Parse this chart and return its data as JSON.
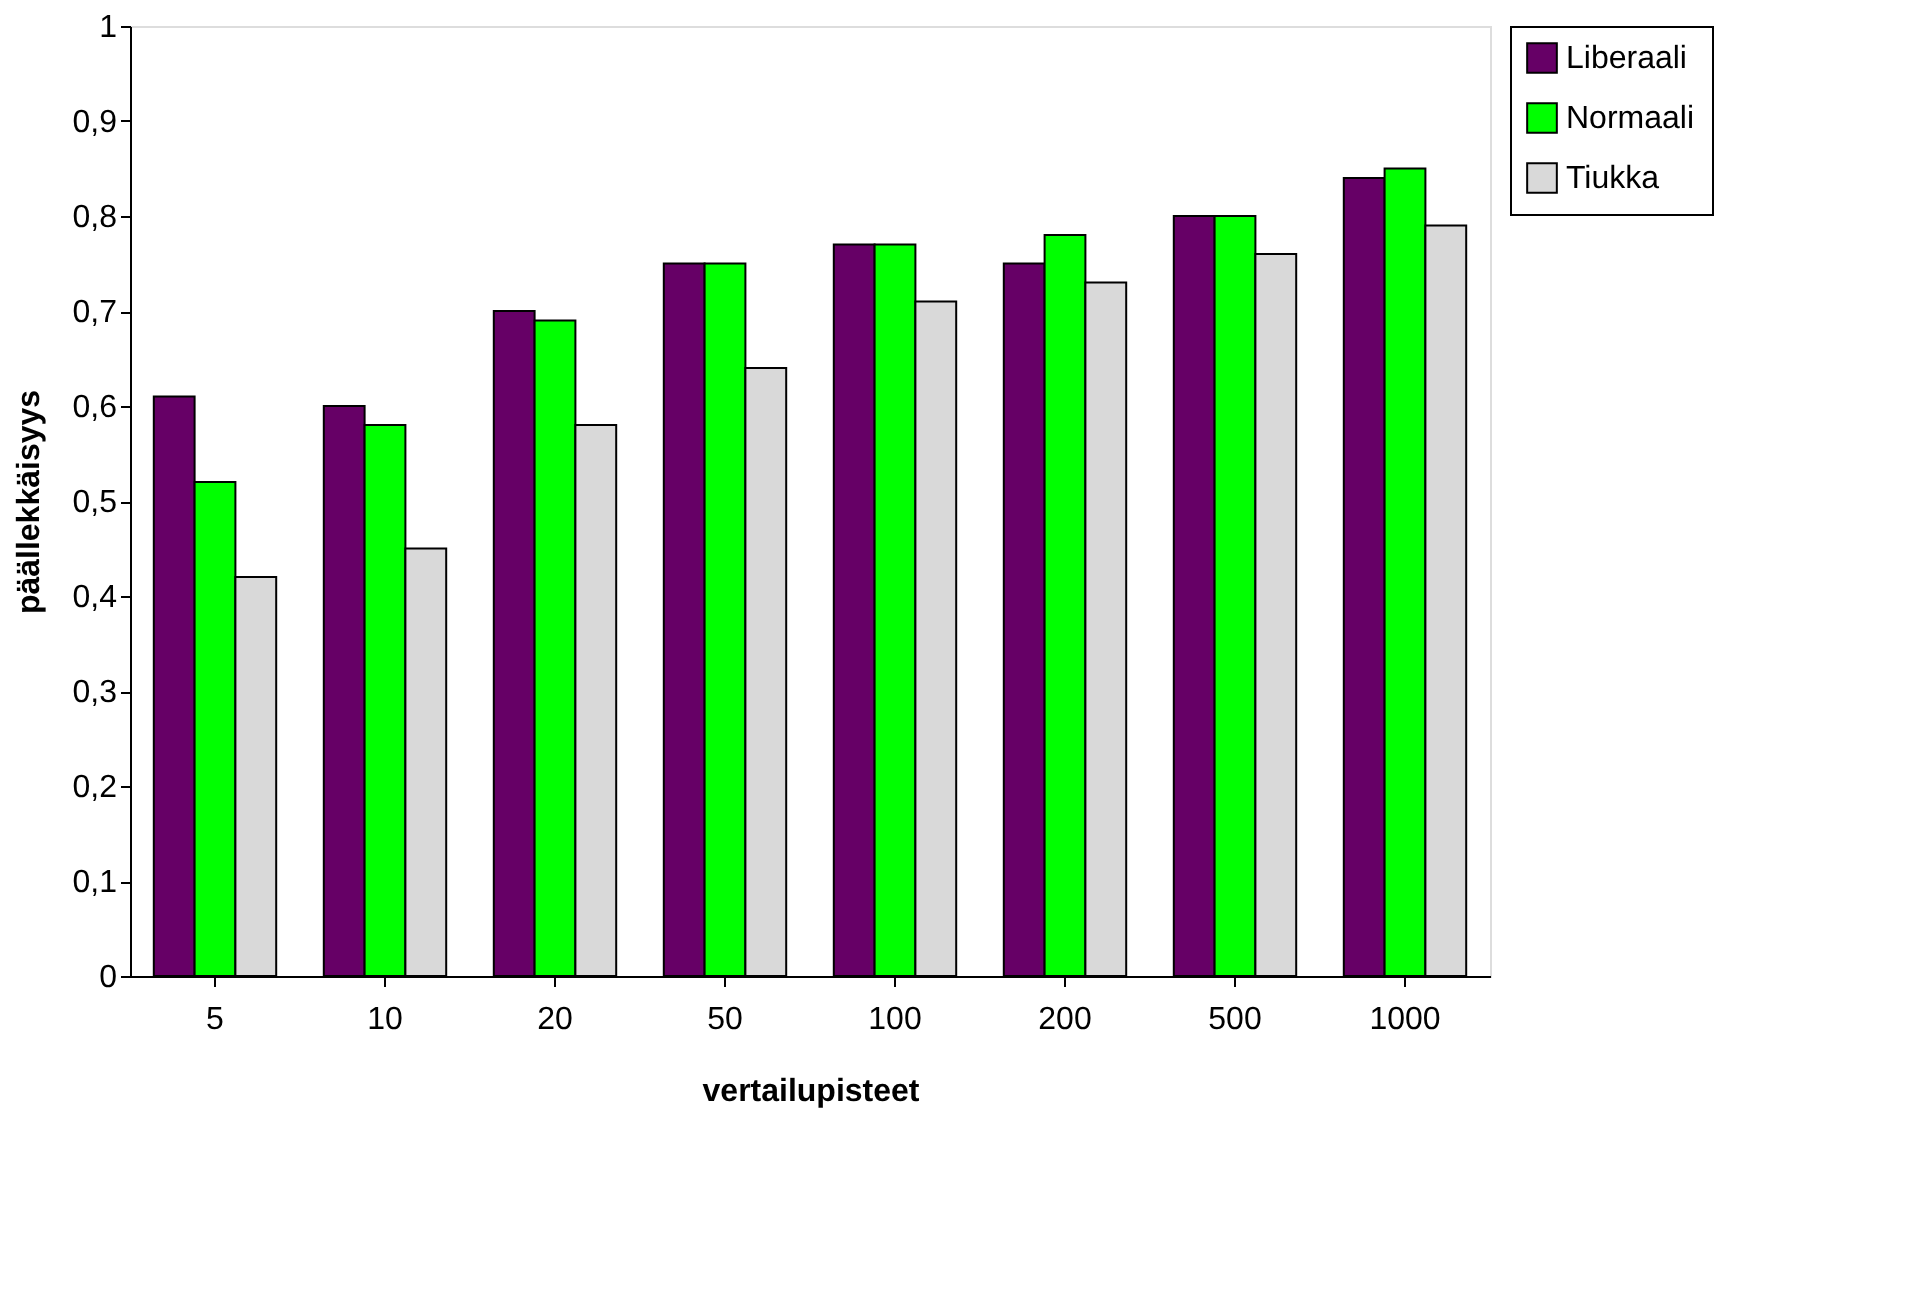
{
  "chart_data": {
    "type": "bar",
    "xlabel": "vertailupisteet",
    "ylabel": "päällekkäisyys",
    "categories": [
      "5",
      "10",
      "20",
      "50",
      "100",
      "200",
      "500",
      "1000"
    ],
    "series": [
      {
        "name": "Liberaali",
        "color": "#660066",
        "values": [
          0.61,
          0.6,
          0.7,
          0.75,
          0.77,
          0.75,
          0.8,
          0.84
        ]
      },
      {
        "name": "Normaali",
        "color": "#00ff00",
        "values": [
          0.52,
          0.58,
          0.69,
          0.75,
          0.77,
          0.78,
          0.8,
          0.85
        ]
      },
      {
        "name": "Tiukka",
        "color": "#d9d9d9",
        "values": [
          0.42,
          0.45,
          0.58,
          0.64,
          0.71,
          0.73,
          0.76,
          0.79
        ]
      }
    ],
    "ylim": [
      0,
      1
    ],
    "yticks": [
      0,
      {
        "value": 0.1,
        "label": "0,1"
      },
      {
        "value": 0.2,
        "label": "0,2"
      },
      {
        "value": 0.3,
        "label": "0,3"
      },
      {
        "value": 0.4,
        "label": "0,4"
      },
      {
        "value": 0.5,
        "label": "0,5"
      },
      {
        "value": 0.6,
        "label": "0,6"
      },
      {
        "value": 0.7,
        "label": "0,7"
      },
      {
        "value": 0.8,
        "label": "0,8"
      },
      {
        "value": 0.9,
        "label": "0,9"
      },
      1
    ],
    "grid": false,
    "legend": "right"
  }
}
